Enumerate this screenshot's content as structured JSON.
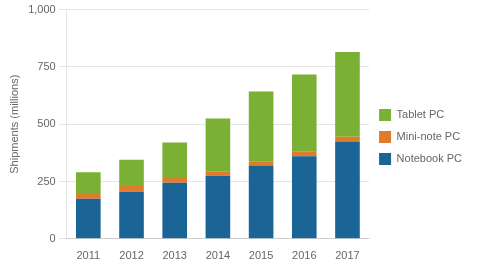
{
  "chart_data": {
    "type": "bar",
    "categories": [
      "2011",
      "2012",
      "2013",
      "2014",
      "2015",
      "2016",
      "2017"
    ],
    "series": [
      {
        "name": "Notebook PC",
        "color": "#1a6496",
        "values": [
          175,
          205,
          245,
          275,
          320,
          360,
          425
        ]
      },
      {
        "name": "Mini-note PC",
        "color": "#e07b29",
        "values": [
          25,
          25,
          20,
          20,
          18,
          22,
          20
        ]
      },
      {
        "name": "Tablet PC",
        "color": "#7ab034",
        "values": [
          90,
          115,
          155,
          230,
          305,
          335,
          370
        ]
      }
    ],
    "ylabel": "Shipments (millions)",
    "ylim": [
      0,
      1000
    ],
    "yticks": [
      0,
      250,
      500,
      750,
      {
        "value": 1000,
        "label": "1,000"
      }
    ],
    "stacked": true,
    "grid": true,
    "legend": "right"
  }
}
